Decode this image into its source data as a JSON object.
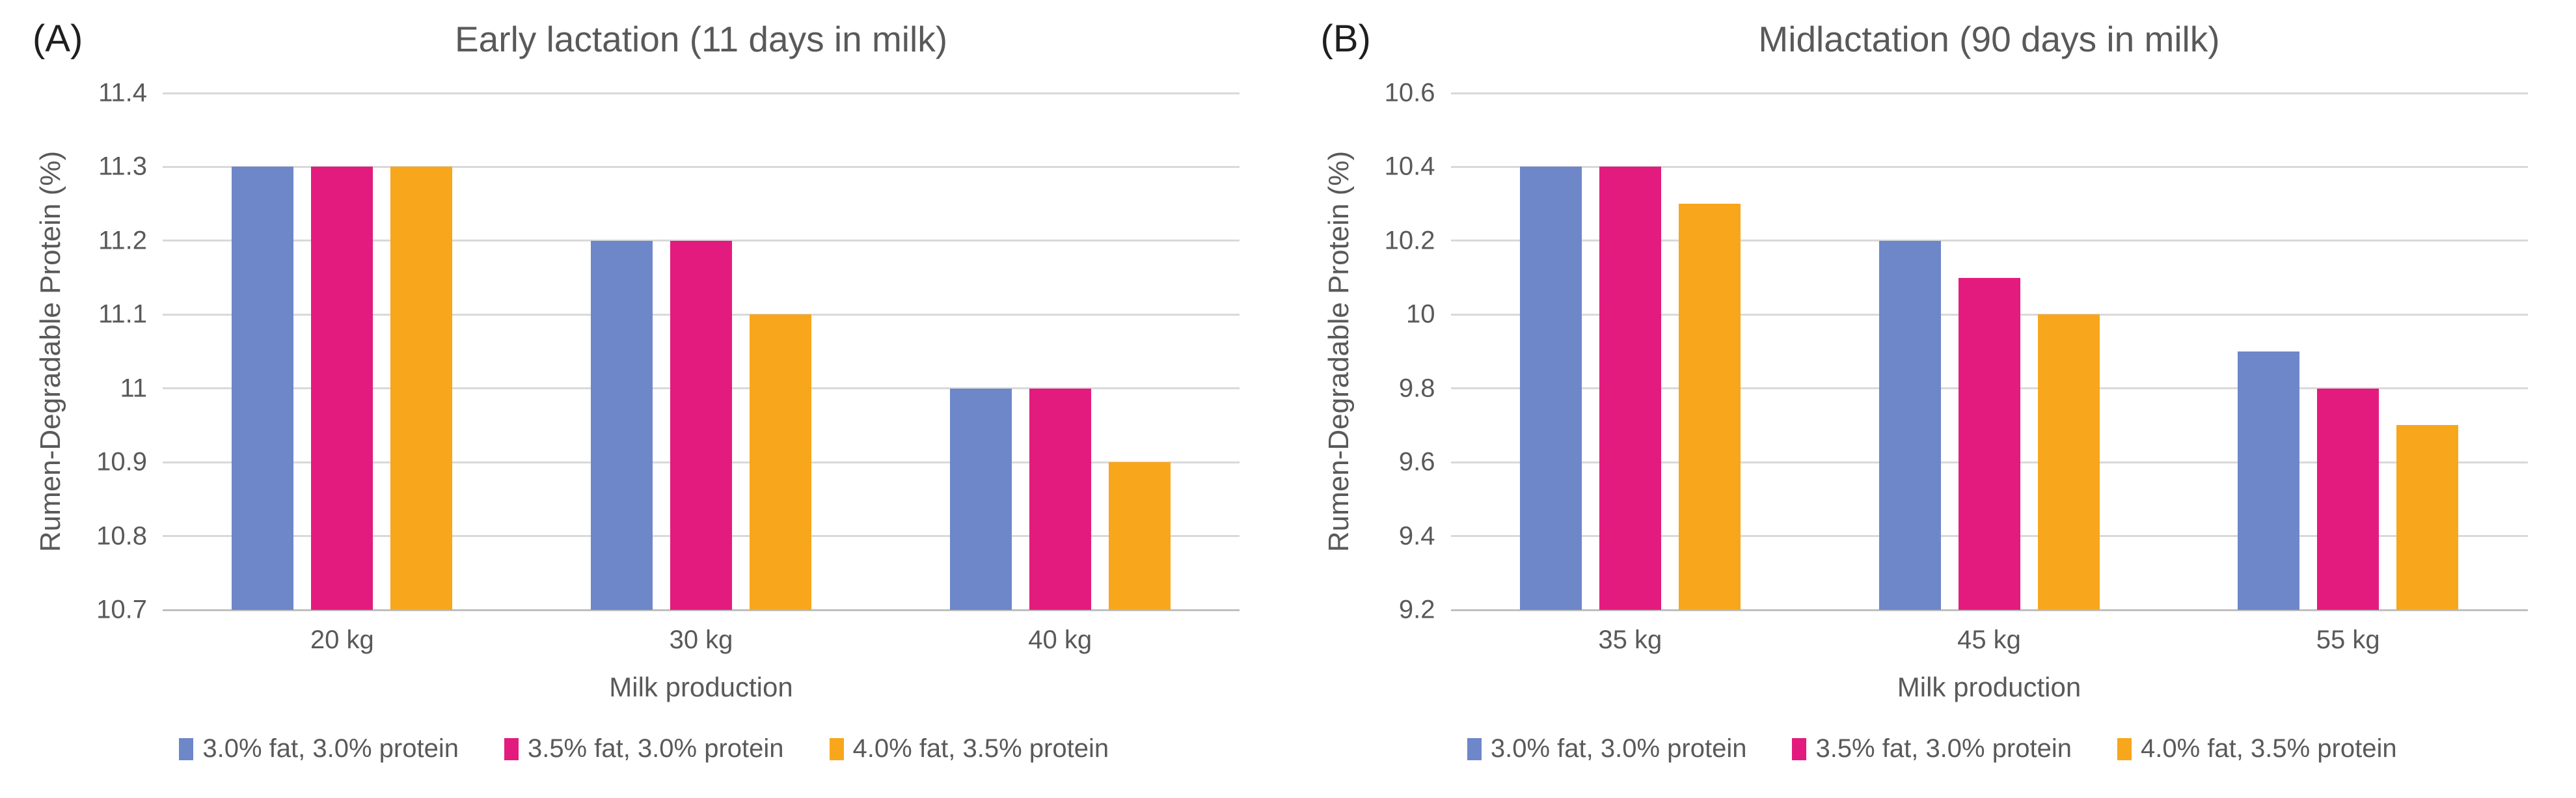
{
  "chart_data": [
    {
      "type": "bar",
      "panel_label": "(A)",
      "title": "Early lactation (11 days in milk)",
      "xlabel": "Milk production",
      "ylabel": "Rumen-Degradable Protein (%)",
      "categories": [
        "20 kg",
        "30 kg",
        "40 kg"
      ],
      "ylim": [
        10.7,
        11.4
      ],
      "ytick_values": [
        10.7,
        10.8,
        10.9,
        11,
        11.1,
        11.2,
        11.3,
        11.4
      ],
      "ytick_labels": [
        "10.7",
        "10.8",
        "10.9",
        "11",
        "11.1",
        "11.2",
        "11.3",
        "11.4"
      ],
      "grid": true,
      "legend_position": "bottom",
      "series": [
        {
          "name": "3.0% fat, 3.0% protein",
          "color": "#6D87C8",
          "values": [
            11.3,
            11.2,
            11.0
          ]
        },
        {
          "name": "3.5% fat, 3.0% protein",
          "color": "#E31B7E",
          "values": [
            11.3,
            11.2,
            11.0
          ]
        },
        {
          "name": "4.0% fat, 3.5% protein",
          "color": "#F8A61B",
          "values": [
            11.3,
            11.1,
            10.9
          ]
        }
      ]
    },
    {
      "type": "bar",
      "panel_label": "(B)",
      "title": "Midlactation (90 days in milk)",
      "xlabel": "Milk production",
      "ylabel": "Rumen-Degradable Protein (%)",
      "categories": [
        "35 kg",
        "45 kg",
        "55 kg"
      ],
      "ylim": [
        9.2,
        10.6
      ],
      "ytick_values": [
        9.2,
        9.4,
        9.6,
        9.8,
        10,
        10.2,
        10.4,
        10.6
      ],
      "ytick_labels": [
        "9.2",
        "9.4",
        "9.6",
        "9.8",
        "10",
        "10.2",
        "10.4",
        "10.6"
      ],
      "grid": true,
      "legend_position": "bottom",
      "series": [
        {
          "name": "3.0% fat, 3.0% protein",
          "color": "#6D87C8",
          "values": [
            10.4,
            10.2,
            9.9
          ]
        },
        {
          "name": "3.5% fat, 3.0% protein",
          "color": "#E31B7E",
          "values": [
            10.4,
            10.1,
            9.8
          ]
        },
        {
          "name": "4.0% fat, 3.5% protein",
          "color": "#F8A61B",
          "values": [
            10.3,
            10.0,
            9.7
          ]
        }
      ]
    }
  ]
}
